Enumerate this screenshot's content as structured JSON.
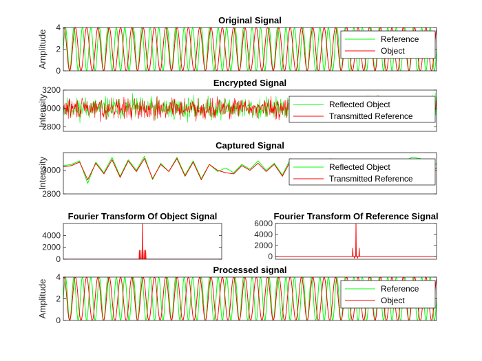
{
  "colors": {
    "green": "#00ff00",
    "red": "#ff0000",
    "axis": "#262626"
  },
  "chart_data": [
    {
      "id": "original",
      "type": "line",
      "title": "Original Signal",
      "xlabel": "",
      "ylabel": "Amplitude",
      "xlim": [
        0,
        1000
      ],
      "ylim": [
        0,
        4
      ],
      "yticks": [
        "0",
        "2",
        "4"
      ],
      "yticks_values": [
        0,
        2,
        4
      ],
      "legend": "top-right",
      "series": [
        {
          "name": "Reference",
          "color": "#00ff00",
          "shape": "sine",
          "offset": 2,
          "amplitude": 2,
          "cycles": 44,
          "phase": 0
        },
        {
          "name": "Object",
          "color": "#ff0000",
          "shape": "sine",
          "offset": 2,
          "amplitude": 2,
          "cycles": 33,
          "phase": 1.2
        }
      ]
    },
    {
      "id": "encrypted",
      "type": "line",
      "title": "Encrypted Signal",
      "xlabel": "",
      "ylabel": "Intensity",
      "xlim": [
        0,
        1000
      ],
      "ylim": [
        2750,
        3200
      ],
      "yticks": [
        "2800",
        "3000",
        "3200"
      ],
      "yticks_values": [
        2800,
        3000,
        3200
      ],
      "legend": "top-right",
      "series": [
        {
          "name": "Reflected Object",
          "color": "#00ff00",
          "shape": "noise",
          "offset": 3000,
          "amplitude": 90,
          "seed": 11,
          "points": 900
        },
        {
          "name": "Transmitted Reference",
          "color": "#ff0000",
          "shape": "noise",
          "offset": 3000,
          "amplitude": 85,
          "seed": 29,
          "points": 900
        }
      ]
    },
    {
      "id": "captured",
      "type": "line",
      "title": "Captured Signal",
      "xlabel": "",
      "ylabel": "Intensity",
      "xlim": [
        0,
        1000
      ],
      "ylim": [
        2800,
        3150
      ],
      "yticks": [
        "2800",
        "3000"
      ],
      "yticks_values": [
        2800,
        3000
      ],
      "legend": "top-right",
      "series": [
        {
          "name": "Reflected Object",
          "color": "#00ff00",
          "shape": "points",
          "values": [
            3040,
            3050,
            3080,
            2890,
            3070,
            2980,
            3110,
            2950,
            3090,
            3000,
            3120,
            2920,
            3060,
            2990,
            3110,
            2960,
            3080,
            2930,
            3050,
            2990,
            3020,
            2980,
            3050,
            3010,
            3080,
            3000,
            3060,
            2960,
            3100,
            3060,
            3040,
            2980,
            3060,
            3100,
            3020,
            3030,
            3000,
            3040,
            3020,
            3010,
            3050,
            3060,
            3080,
            3110,
            3100,
            2980,
            3060
          ]
        },
        {
          "name": "Transmitted Reference",
          "color": "#ff0000",
          "shape": "points",
          "values": [
            3030,
            3040,
            3070,
            2920,
            3060,
            2970,
            3090,
            2940,
            3080,
            2990,
            3100,
            2930,
            3050,
            2990,
            3100,
            2950,
            3070,
            2920,
            3050,
            3000,
            2980,
            2970,
            3040,
            3000,
            3060,
            2990,
            3050,
            2950,
            3080,
            3030,
            3050,
            3000,
            3050,
            3080,
            3020,
            3000,
            2990,
            3030,
            3010,
            3000,
            3040,
            3050,
            3070,
            3050,
            3060,
            3000,
            3020
          ]
        }
      ]
    },
    {
      "id": "fft_object",
      "type": "bar",
      "title": "Fourier Transform Of Object Signal",
      "xlabel": "",
      "ylabel": "",
      "xlim": [
        0,
        1000
      ],
      "ylim": [
        0,
        6000
      ],
      "yticks": [
        "0",
        "2000",
        "4000"
      ],
      "yticks_values": [
        0,
        2000,
        4000
      ],
      "series": [
        {
          "name": "",
          "color": "#ff0000",
          "shape": "spikes",
          "peaks": [
            [
              480,
              1500
            ],
            [
              490,
              1500
            ],
            [
              500,
              6000
            ],
            [
              510,
              1500
            ],
            [
              520,
              1500
            ]
          ],
          "baseline": 20
        }
      ]
    },
    {
      "id": "fft_reference",
      "type": "bar",
      "title": "Fourier Transform Of Reference Signal",
      "xlabel": "",
      "ylabel": "",
      "xlim": [
        0,
        1000
      ],
      "ylim": [
        -500,
        6000
      ],
      "yticks": [
        "0",
        "2000",
        "4000",
        "6000"
      ],
      "yticks_values": [
        0,
        2000,
        4000,
        6000
      ],
      "series": [
        {
          "name": "",
          "color": "#ff0000",
          "shape": "spikes",
          "peaks": [
            [
              480,
              1500
            ],
            [
              490,
              -300
            ],
            [
              500,
              6000
            ],
            [
              510,
              -300
            ],
            [
              520,
              1500
            ]
          ],
          "baseline": 0
        }
      ]
    },
    {
      "id": "processed",
      "type": "line",
      "title": "Processed signal",
      "xlabel": "",
      "ylabel": "Amplitude",
      "xlim": [
        0,
        1000
      ],
      "ylim": [
        0,
        4
      ],
      "yticks": [
        "0",
        "2",
        "4"
      ],
      "yticks_values": [
        0,
        2,
        4
      ],
      "legend": "top-right",
      "series": [
        {
          "name": "Reference",
          "color": "#00ff00",
          "shape": "sine",
          "offset": 2,
          "amplitude": 2,
          "cycles": 44,
          "phase": 0
        },
        {
          "name": "Object",
          "color": "#ff0000",
          "shape": "sine",
          "offset": 2,
          "amplitude": 2,
          "cycles": 33,
          "phase": 1.2
        }
      ]
    }
  ]
}
